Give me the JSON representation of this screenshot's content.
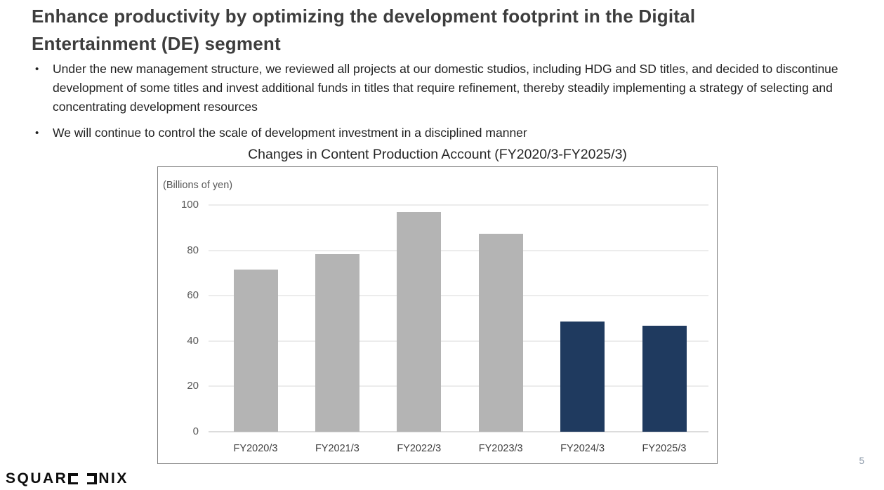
{
  "header": {
    "title_line1": "Enhance productivity by optimizing the development footprint in the Digital",
    "title_line2": "Entertainment (DE) segment"
  },
  "content": {
    "bullets": [
      "Under the new management structure, we reviewed all projects at our domestic studios, including HDG and SD titles, and decided to discontinue development of some titles and invest additional funds in titles that require refinement, thereby steadily implementing a strategy of selecting and concentrating development resources",
      "We will continue to control the scale of development investment in a disciplined manner"
    ]
  },
  "chart_data": {
    "type": "bar",
    "title": "Changes in Content Production Account (FY2020/3-FY2025/3)",
    "unit_label": "(Billions of yen)",
    "categories": [
      "FY2020/3",
      "FY2021/3",
      "FY2022/3",
      "FY2023/3",
      "FY2024/3",
      "FY2025/3"
    ],
    "values": [
      71.5,
      78.4,
      96.9,
      87.4,
      48.5,
      46.7
    ],
    "bar_colors": [
      "#b4b4b4",
      "#b4b4b4",
      "#b4b4b4",
      "#b4b4b4",
      "#1f3a5f",
      "#1f3a5f"
    ],
    "ylim": [
      0,
      100
    ],
    "yticks": [
      0,
      20,
      40,
      60,
      80,
      100
    ],
    "grid": "horizontal",
    "legend": "none",
    "xlabel": "",
    "ylabel": ""
  },
  "colors": {
    "bar_gray": "#b4b4b4",
    "bar_navy": "#1f3a5f",
    "logo_red": "#e60012",
    "chart_border": "#7f7f7f"
  },
  "footer": {
    "logo_text": "SQUARE ENIX",
    "logo_part1": "SQUAR",
    "logo_part2": "NIX",
    "page_number": "5"
  }
}
